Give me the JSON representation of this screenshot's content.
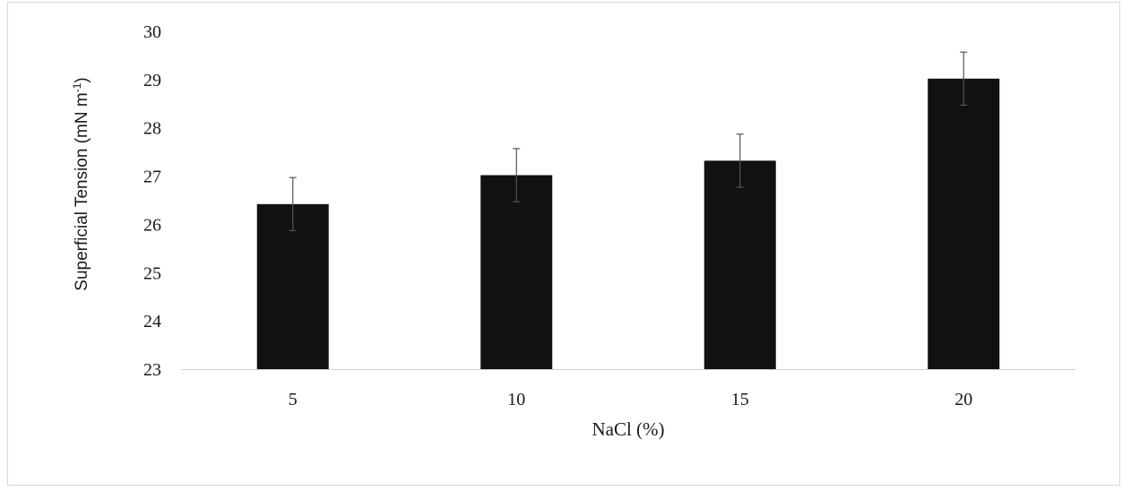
{
  "chart_data": {
    "type": "bar",
    "title": "",
    "xlabel": "NaCl (%)",
    "ylabel": {
      "main": "Superficial Tension (mN m",
      "superscript": "-1",
      "close": ")"
    },
    "categories": [
      "5",
      "10",
      "15",
      "20"
    ],
    "values": [
      26.42,
      27.02,
      27.32,
      29.02
    ],
    "errors": [
      0.55,
      0.55,
      0.55,
      0.55
    ],
    "ylim": [
      23,
      30
    ],
    "yticks": [
      "23",
      "24",
      "25",
      "26",
      "27",
      "28",
      "29",
      "30"
    ],
    "grid": false,
    "legend": "none",
    "bar_color": "#111111",
    "error_color": "#555555",
    "axis_color": "#d0d0d0"
  }
}
